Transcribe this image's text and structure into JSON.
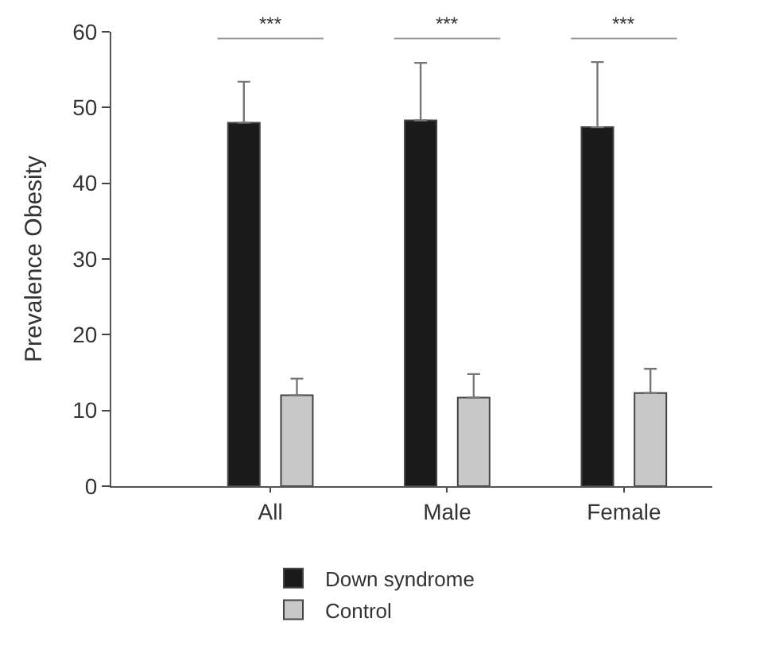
{
  "chart_data": {
    "type": "bar",
    "ylabel": "Prevalence Obesity",
    "categories": [
      "All",
      "Male",
      "Female"
    ],
    "series": [
      {
        "name": "Down syndrome",
        "color": "#1a1a1a",
        "values": [
          48,
          48.3,
          47.4
        ],
        "errors": [
          [
            48,
            53.4
          ],
          [
            48.3,
            55.9
          ],
          [
            47.4,
            56
          ]
        ]
      },
      {
        "name": "Control",
        "color": "#c8c8c8",
        "values": [
          12,
          11.7,
          12.3
        ],
        "errors": [
          [
            12,
            14.2
          ],
          [
            11.7,
            14.8
          ],
          [
            12.3,
            15.5
          ]
        ]
      }
    ],
    "annotations": [
      "***",
      "***",
      "***"
    ],
    "ylim": [
      0,
      60
    ],
    "yticks": [
      0,
      10,
      20,
      30,
      40,
      50,
      60
    ],
    "legend": "bottom"
  }
}
